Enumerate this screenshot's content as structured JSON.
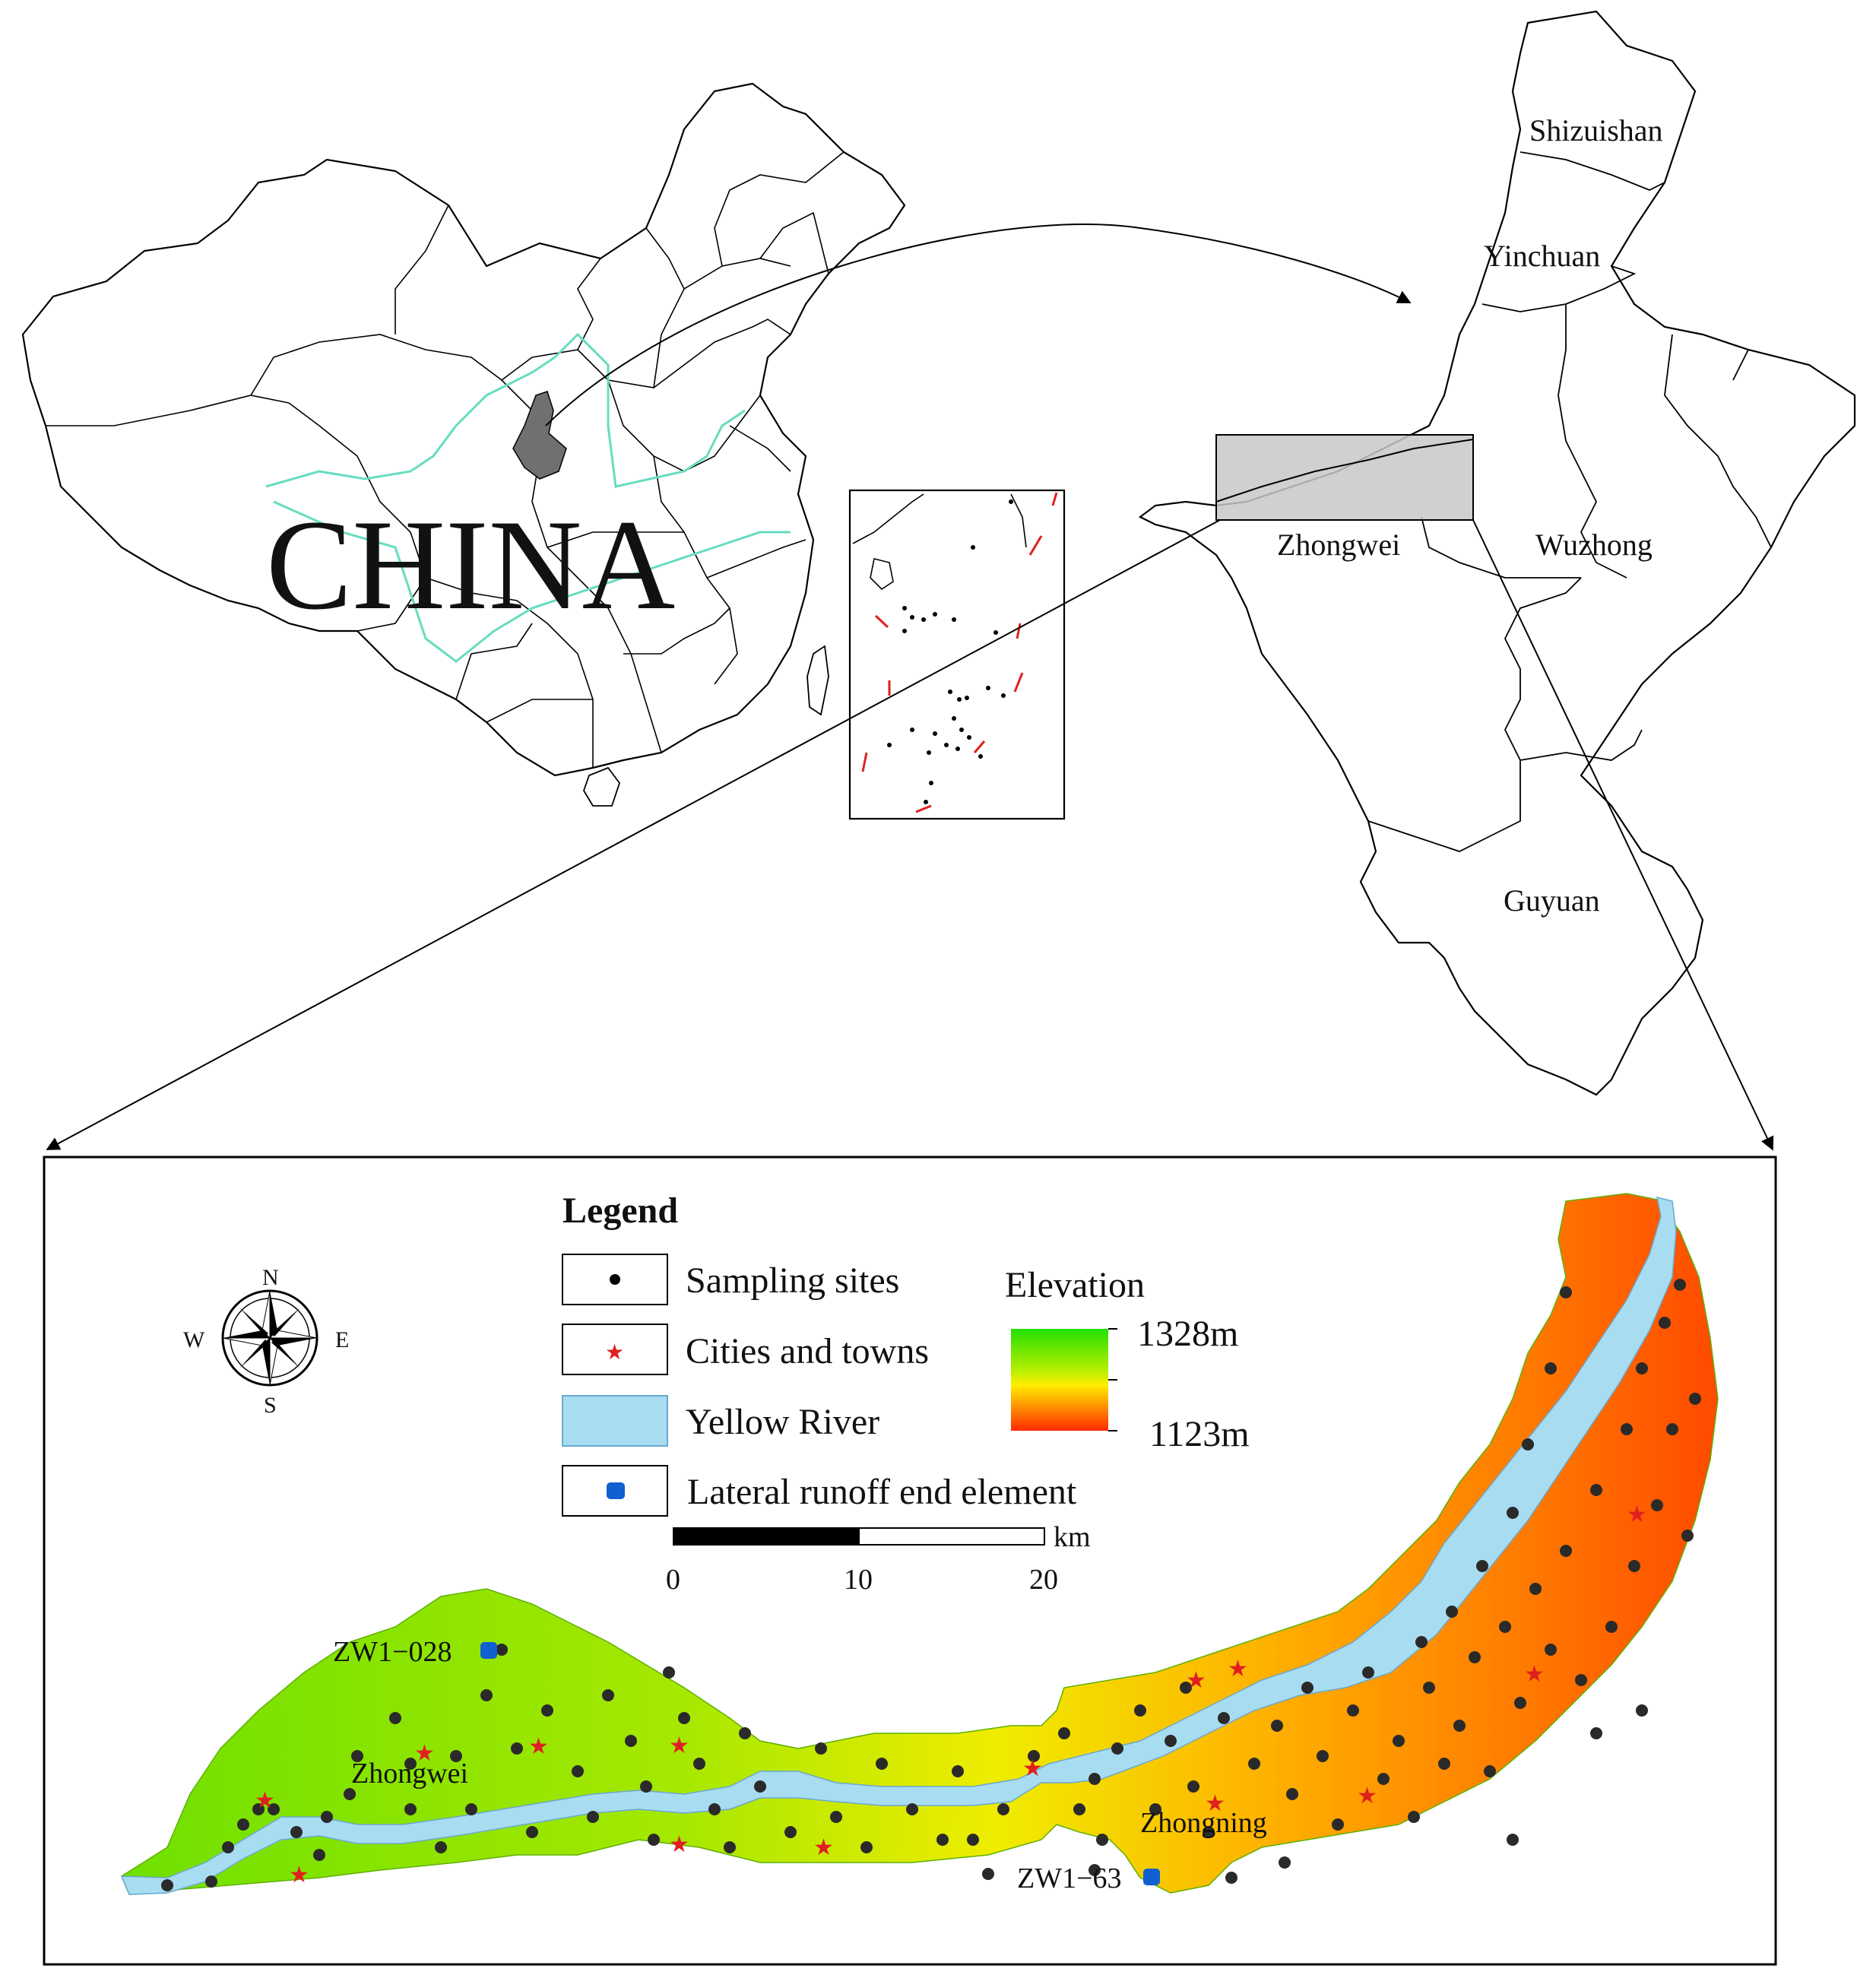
{
  "china_map": {
    "country_label": "CHINA"
  },
  "ningxia_map": {
    "regions": [
      "Shizuishan",
      "Yinchuan",
      "Zhongwei",
      "Wuzhong",
      "Guyuan"
    ]
  },
  "study_area": {
    "legend": {
      "title": "Legend",
      "items": [
        {
          "label": "Sampling sites",
          "symbol": "black-dot"
        },
        {
          "label": "Cities and towns",
          "symbol": "red-star"
        },
        {
          "label": "Yellow River",
          "symbol": "light-blue-fill"
        },
        {
          "label": "Lateral runoff end element",
          "symbol": "blue-square"
        }
      ],
      "elevation": {
        "title": "Elevation",
        "max": "1328m",
        "min": "1123m"
      },
      "colors": {
        "high": "#22e000",
        "mid": "#ffee00",
        "low": "#ff2a00",
        "river": "#a8dcf0",
        "site_end": "#1060d0",
        "star": "#e02020"
      }
    },
    "compass": {
      "n": "N",
      "s": "S",
      "e": "E",
      "w": "W"
    },
    "scale_bar": {
      "unit": "km",
      "ticks": [
        "0",
        "10",
        "20"
      ]
    },
    "labels": {
      "city_1": "Zhongwei",
      "city_2": "Zhongning",
      "site_1": "ZW1−028",
      "site_2": "ZW1−63"
    }
  }
}
